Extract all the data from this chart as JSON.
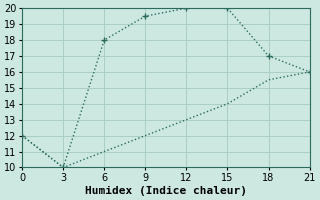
{
  "line1_x": [
    0,
    3,
    6,
    9,
    12,
    15,
    18,
    21
  ],
  "line1_y": [
    12,
    10,
    18,
    19.5,
    20,
    20,
    17,
    16
  ],
  "line2_x": [
    0,
    3,
    6,
    9,
    12,
    15,
    18,
    21
  ],
  "line2_y": [
    12,
    10,
    11,
    12,
    13,
    14,
    15.5,
    16
  ],
  "line_color": "#2a6b5e",
  "bg_color": "#cce8e0",
  "grid_color": "#aacfc5",
  "xlabel": "Humidex (Indice chaleur)",
  "xlim": [
    0,
    21
  ],
  "ylim": [
    10,
    20
  ],
  "xticks": [
    0,
    3,
    6,
    9,
    12,
    15,
    18,
    21
  ],
  "yticks": [
    10,
    11,
    12,
    13,
    14,
    15,
    16,
    17,
    18,
    19,
    20
  ],
  "markersize": 4,
  "linewidth": 1.0,
  "xlabel_fontsize": 8,
  "tick_fontsize": 7
}
